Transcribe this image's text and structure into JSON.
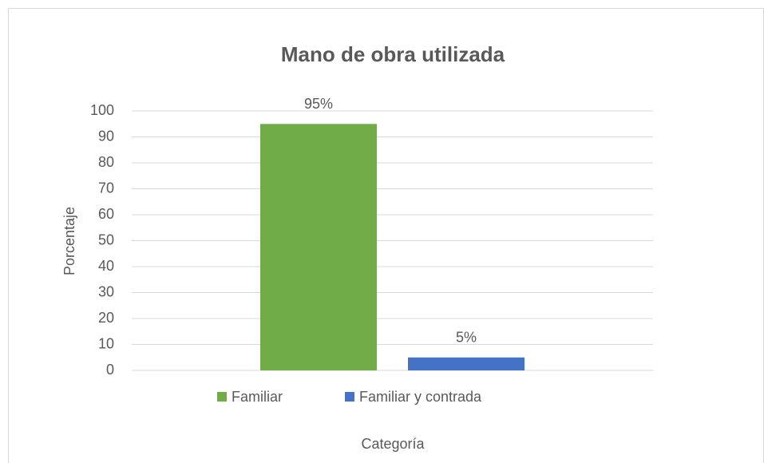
{
  "chart_data": {
    "type": "bar",
    "title": "Mano de obra utilizada",
    "y_label": "Porcentaje",
    "x_label": "Categoría",
    "categories": [
      null
    ],
    "series": [
      {
        "name": "Familiar",
        "color": "#70ad47",
        "values": [
          95
        ],
        "value_labels": [
          "95%"
        ]
      },
      {
        "name": "Familiar y contrada",
        "color": "#4472c4",
        "values": [
          5
        ],
        "value_labels": [
          "5%"
        ]
      }
    ],
    "ylim": [
      0,
      100
    ],
    "yticks": [
      0,
      10,
      20,
      30,
      40,
      50,
      60,
      70,
      80,
      90,
      100
    ],
    "grid": true,
    "legend": "bottom"
  }
}
